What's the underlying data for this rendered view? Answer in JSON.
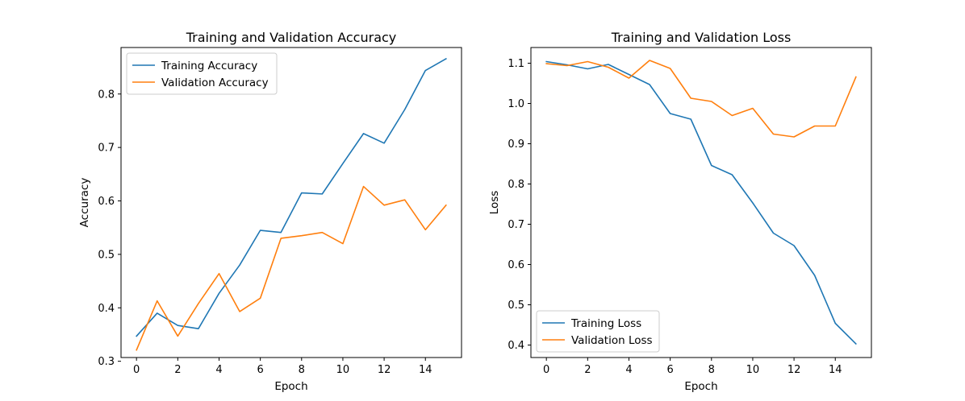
{
  "chart_data": [
    {
      "type": "line",
      "title": "Training and Validation Accuracy",
      "xlabel": "Epoch",
      "ylabel": "Accuracy",
      "xlim": [
        -0.75,
        15.75
      ],
      "ylim": [
        0.307,
        0.887
      ],
      "xticks": [
        0,
        2,
        4,
        6,
        8,
        10,
        12,
        14
      ],
      "yticks": [
        0.3,
        0.4,
        0.5,
        0.6,
        0.7,
        0.8
      ],
      "grid": false,
      "legend": "upper-left",
      "x": [
        0,
        1,
        2,
        3,
        4,
        5,
        6,
        7,
        8,
        9,
        10,
        11,
        12,
        13,
        14,
        15
      ],
      "series": [
        {
          "name": "Training Accuracy",
          "color": "#1f77b4",
          "values": [
            0.347,
            0.39,
            0.367,
            0.361,
            0.427,
            0.48,
            0.545,
            0.541,
            0.615,
            0.613,
            0.67,
            0.726,
            0.708,
            0.771,
            0.844,
            0.866
          ]
        },
        {
          "name": "Validation Accuracy",
          "color": "#ff7f0e",
          "values": [
            0.321,
            0.413,
            0.347,
            0.408,
            0.464,
            0.393,
            0.418,
            0.53,
            0.535,
            0.541,
            0.52,
            0.627,
            0.592,
            0.602,
            0.546,
            0.592
          ]
        }
      ]
    },
    {
      "type": "line",
      "title": "Training and Validation Loss",
      "xlabel": "Epoch",
      "ylabel": "Loss",
      "xlim": [
        -0.75,
        15.75
      ],
      "ylim": [
        0.369,
        1.139
      ],
      "xticks": [
        0,
        2,
        4,
        6,
        8,
        10,
        12,
        14
      ],
      "yticks": [
        0.4,
        0.5,
        0.6,
        0.7,
        0.8,
        0.9,
        1.0,
        1.1
      ],
      "grid": false,
      "legend": "lower-left",
      "x": [
        0,
        1,
        2,
        3,
        4,
        5,
        6,
        7,
        8,
        9,
        10,
        11,
        12,
        13,
        14,
        15
      ],
      "series": [
        {
          "name": "Training Loss",
          "color": "#1f77b4",
          "values": [
            1.104,
            1.096,
            1.086,
            1.097,
            1.072,
            1.047,
            0.975,
            0.961,
            0.846,
            0.823,
            0.753,
            0.678,
            0.647,
            0.573,
            0.454,
            0.403
          ]
        },
        {
          "name": "Validation Loss",
          "color": "#ff7f0e",
          "values": [
            1.099,
            1.094,
            1.104,
            1.09,
            1.063,
            1.107,
            1.087,
            1.013,
            1.005,
            0.97,
            0.988,
            0.924,
            0.917,
            0.944,
            0.944,
            1.066
          ]
        }
      ]
    }
  ]
}
